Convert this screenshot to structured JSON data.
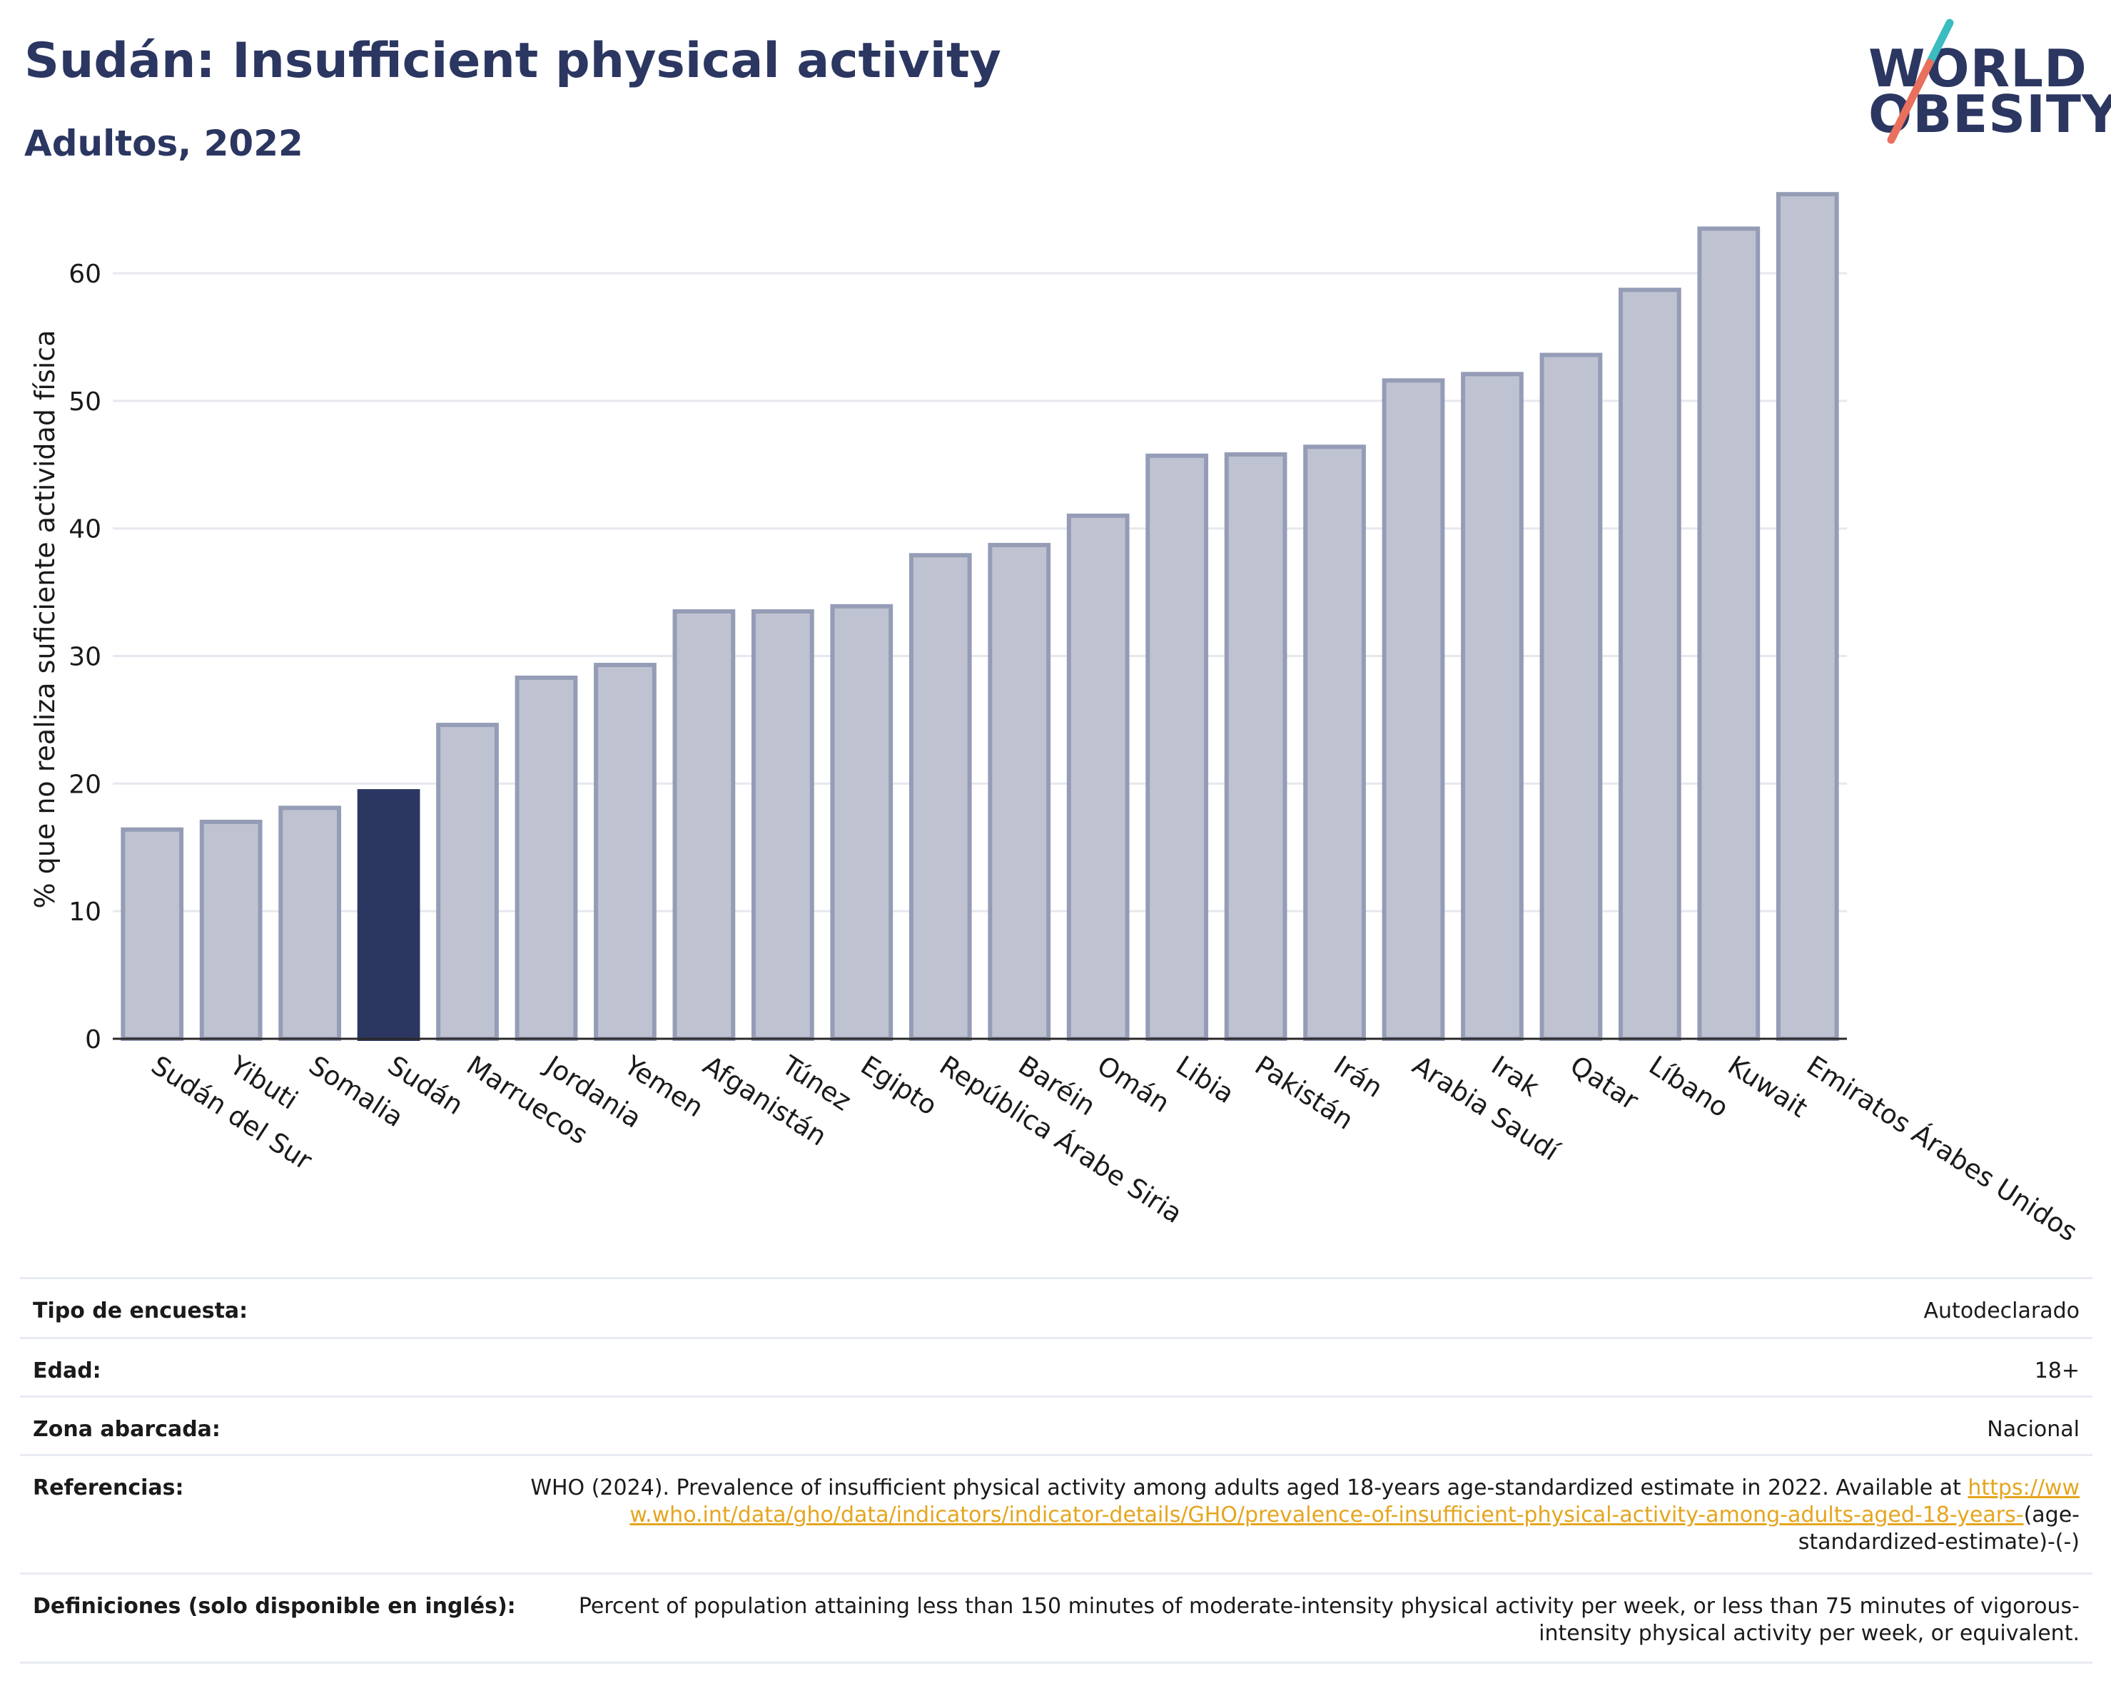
{
  "header": {
    "title": "Sudán: Insufficient physical activity",
    "subtitle": "Adultos, 2022"
  },
  "logo": {
    "line1": "WORLD",
    "line2": "OBESITY"
  },
  "colors": {
    "highlight_bar": "#2b3661",
    "bar_fill": "#bfc3d1",
    "bar_stroke": "#959cb6",
    "title": "#2b3661",
    "link": "#e5a51e",
    "logo_slash_teal": "#3bbcc0",
    "logo_slash_red": "#e8705d"
  },
  "chart_data": {
    "type": "bar",
    "title": "",
    "xlabel": "",
    "ylabel": "% que no realiza suficiente actividad física",
    "ylim": [
      0,
      68
    ],
    "yticks": [
      0,
      10,
      20,
      30,
      40,
      50,
      60
    ],
    "grid": true,
    "highlight": "Sudán",
    "categories": [
      "Sudán del Sur",
      "Yibuti",
      "Somalia",
      "Sudán",
      "Marruecos",
      "Jordania",
      "Yemen",
      "Afganistán",
      "Túnez",
      "Egipto",
      "República Árabe Siria",
      "Baréin",
      "Omán",
      "Libia",
      "Pakistán",
      "Irán",
      "Arabia Saudí",
      "Irak",
      "Qatar",
      "Líbano",
      "Kuwait",
      "Emiratos Árabes Unidos"
    ],
    "values": [
      16.4,
      17.0,
      18.1,
      19.4,
      24.6,
      28.3,
      29.3,
      33.5,
      33.5,
      33.9,
      37.9,
      38.7,
      41.0,
      45.7,
      45.8,
      46.4,
      51.6,
      52.1,
      53.6,
      58.7,
      63.5,
      66.2
    ]
  },
  "info_table": [
    {
      "label": "Tipo de encuesta:",
      "value": "Autodeclarado"
    },
    {
      "label": "Edad:",
      "value": "18+"
    },
    {
      "label": "Zona abarcada:",
      "value": "Nacional"
    },
    {
      "label": "Referencias:",
      "value": "WHO (2024). Prevalence of insufficient physical activity among adults aged 18-years age-standardized estimate in 2022. Available at ",
      "link": "https://www.who.int/data/gho/data/indicators/indicator-details/GHO/prevalence-of-insufficient-physical-activity-among-adults-aged-18-years-",
      "suffix": "(age-standardized-estimate)-(-)"
    },
    {
      "label": "Definiciones (solo disponible en inglés):",
      "value": "Percent of population attaining less than 150 minutes of moderate-intensity physical activity per week, or less than 75 minutes of vigorous-intensity physical activity per week, or equivalent."
    }
  ]
}
